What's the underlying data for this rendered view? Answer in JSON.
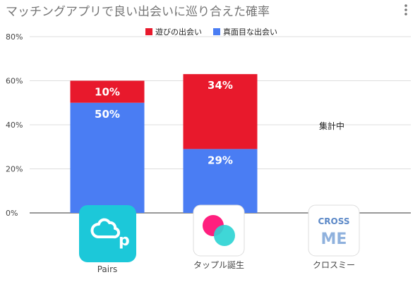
{
  "colors": {
    "fun": "#e8192c",
    "serious": "#4a7df3",
    "grid": "#dddddd",
    "axis": "#333333",
    "pairs": "#1cc8d9",
    "tapple_pink": "#ff1f7e",
    "tapple_teal": "#2fd4d4",
    "crossme": "#5b88c7",
    "crossme_light": "#8fb1dd"
  },
  "icons": [
    "pairs-logo-icon",
    "tapple-logo-icon",
    "crossme-logo-icon",
    "more-vert-icon"
  ],
  "chart_data": {
    "type": "bar",
    "stacked": true,
    "title": "マッチングアプリで良い出会いに巡り合えた確率",
    "xlabel": "",
    "ylabel": "",
    "categories": [
      "Pairs",
      "タップル誕生",
      "クロスミー"
    ],
    "series": [
      {
        "name": "真面目な出会い",
        "values": [
          50,
          29,
          null
        ],
        "labels": [
          "50%",
          "29%",
          ""
        ]
      },
      {
        "name": "遊びの出会い",
        "values": [
          10,
          34,
          null
        ],
        "labels": [
          "10%",
          "34%",
          ""
        ]
      }
    ],
    "ylim": [
      0,
      80
    ],
    "yticks": [
      0,
      20,
      40,
      60,
      80
    ],
    "ytick_labels": [
      "0%",
      "20%",
      "40%",
      "60%",
      "80%"
    ],
    "legend": [
      "遊びの出会い",
      "真面目な出会い"
    ],
    "legend_position": "top",
    "grid": true,
    "annotation": "集計中",
    "logo_texts": {
      "pairs": "p",
      "crossme_top": "CROSS",
      "crossme_bottom": "ME"
    }
  }
}
